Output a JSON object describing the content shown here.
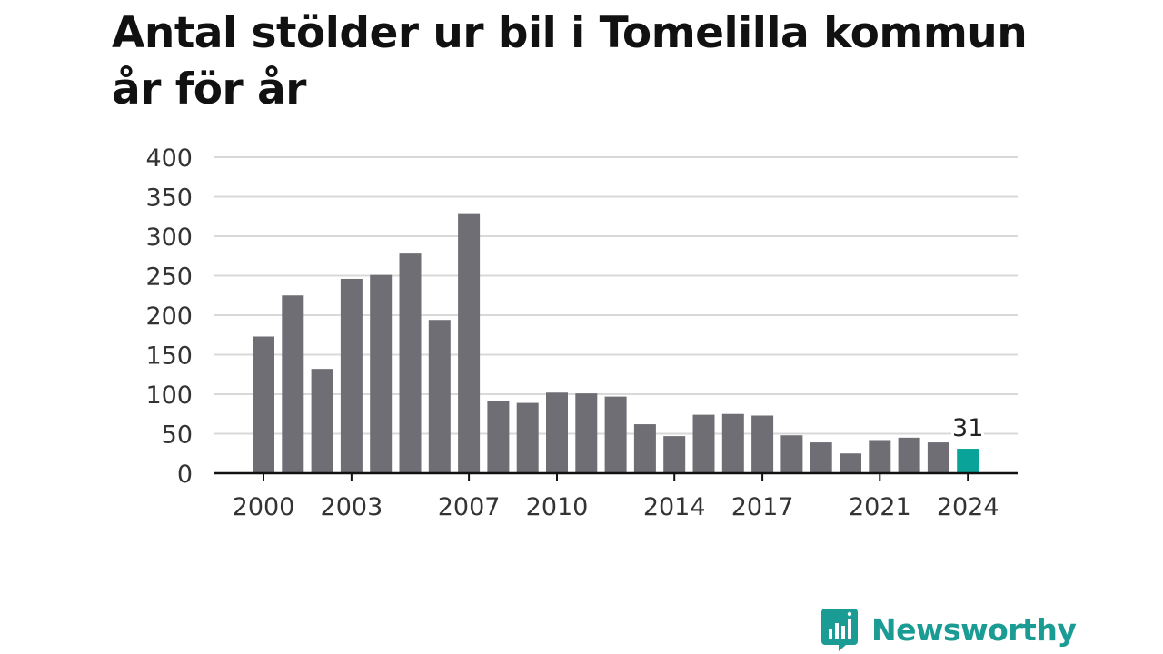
{
  "title": {
    "line1": "Antal stölder ur bil i Tomelilla kommun",
    "line2": "år för år"
  },
  "brand": {
    "name": "Newsworthy",
    "icon": "newsworthy-logo-icon",
    "color": "#1a9b93"
  },
  "colors": {
    "bar": "#6f6e74",
    "highlight": "#0aa39a",
    "grid": "#d9d9d9",
    "axis": "#111111"
  },
  "chart_data": {
    "type": "bar",
    "title": "Antal stölder ur bil i Tomelilla kommun år för år",
    "xlabel": "",
    "ylabel": "",
    "ylim": [
      0,
      400
    ],
    "yticks": [
      0,
      50,
      100,
      150,
      200,
      250,
      300,
      350,
      400
    ],
    "grid": true,
    "categories": [
      "2000",
      "2001",
      "2002",
      "2003",
      "2004",
      "2005",
      "2006",
      "2007",
      "2008",
      "2009",
      "2010",
      "2011",
      "2012",
      "2013",
      "2014",
      "2015",
      "2016",
      "2017",
      "2018",
      "2019",
      "2020",
      "2021",
      "2022",
      "2023",
      "2024"
    ],
    "xtick_labels": [
      "2000",
      "2003",
      "2007",
      "2010",
      "2014",
      "2017",
      "2021",
      "2024"
    ],
    "values": [
      173,
      225,
      132,
      246,
      251,
      278,
      194,
      328,
      91,
      89,
      102,
      101,
      97,
      62,
      47,
      74,
      75,
      73,
      48,
      39,
      25,
      42,
      45,
      39,
      31
    ],
    "highlight": {
      "category": "2024",
      "value": 31,
      "label": "31"
    }
  }
}
